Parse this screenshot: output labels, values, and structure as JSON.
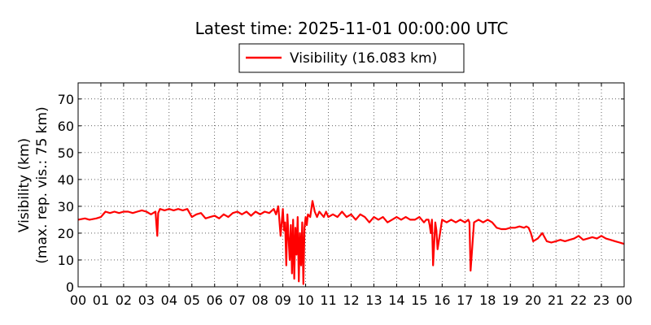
{
  "chart_data": {
    "type": "line",
    "title": "Latest time: 2025-11-01 00:00:00 UTC",
    "ylabel_line1": "Visibility (km)",
    "ylabel_line2": "(max. rep. vis.: 75 km)",
    "xlabel": "",
    "xlim": [
      0,
      24
    ],
    "ylim": [
      0,
      76
    ],
    "grid": true,
    "legend_position": "top-center",
    "x_ticks": [
      "00",
      "01",
      "02",
      "03",
      "04",
      "05",
      "06",
      "07",
      "08",
      "09",
      "10",
      "11",
      "12",
      "13",
      "14",
      "15",
      "16",
      "17",
      "18",
      "19",
      "20",
      "21",
      "22",
      "23",
      "00"
    ],
    "y_ticks": [
      0,
      10,
      20,
      30,
      40,
      50,
      60,
      70
    ],
    "series": [
      {
        "name": "Visibility (16.083 km)",
        "color": "#ff0000",
        "x": [
          0.0,
          0.3,
          0.5,
          0.8,
          1.0,
          1.2,
          1.4,
          1.6,
          1.8,
          2.0,
          2.2,
          2.4,
          2.6,
          2.8,
          3.0,
          3.2,
          3.4,
          3.48,
          3.52,
          3.6,
          3.8,
          4.0,
          4.2,
          4.4,
          4.6,
          4.8,
          5.0,
          5.2,
          5.4,
          5.6,
          5.8,
          6.0,
          6.2,
          6.4,
          6.6,
          6.8,
          7.0,
          7.2,
          7.4,
          7.6,
          7.8,
          8.0,
          8.2,
          8.4,
          8.6,
          8.7,
          8.8,
          8.9,
          9.0,
          9.05,
          9.1,
          9.15,
          9.2,
          9.3,
          9.35,
          9.4,
          9.45,
          9.5,
          9.55,
          9.6,
          9.65,
          9.7,
          9.75,
          9.8,
          9.85,
          9.9,
          9.95,
          10.0,
          10.05,
          10.1,
          10.2,
          10.3,
          10.4,
          10.5,
          10.6,
          10.7,
          10.8,
          10.9,
          11.0,
          11.2,
          11.4,
          11.6,
          11.8,
          12.0,
          12.2,
          12.4,
          12.6,
          12.8,
          13.0,
          13.2,
          13.4,
          13.6,
          13.8,
          14.0,
          14.2,
          14.4,
          14.6,
          14.8,
          15.0,
          15.2,
          15.3,
          15.4,
          15.45,
          15.5,
          15.55,
          15.6,
          15.7,
          15.75,
          15.8,
          16.0,
          16.2,
          16.4,
          16.6,
          16.8,
          17.0,
          17.15,
          17.2,
          17.25,
          17.4,
          17.6,
          17.8,
          18.0,
          18.2,
          18.4,
          18.6,
          18.8,
          19.0,
          19.2,
          19.4,
          19.6,
          19.7,
          19.8,
          19.9,
          20.0,
          20.2,
          20.4,
          20.6,
          20.8,
          21.0,
          21.2,
          21.4,
          21.6,
          21.8,
          22.0,
          22.2,
          22.4,
          22.6,
          22.8,
          23.0,
          23.2,
          23.4,
          23.6,
          23.8,
          24.0
        ],
        "y": [
          25,
          25.5,
          25,
          25.5,
          26,
          28,
          27.5,
          28,
          27.5,
          28,
          28,
          27.5,
          28,
          28.5,
          28,
          27,
          28,
          19,
          27.5,
          29,
          28.5,
          29,
          28.5,
          29,
          28.5,
          29,
          26,
          27,
          27.5,
          25.5,
          26,
          26.5,
          25.5,
          27,
          26,
          27.5,
          28,
          27,
          28,
          26.5,
          28,
          27,
          28,
          27.5,
          29,
          27,
          30,
          19,
          29,
          21,
          24,
          8,
          27,
          10,
          23,
          5,
          25,
          3,
          22,
          12,
          26,
          2,
          20,
          8,
          24,
          1,
          22,
          26,
          23,
          27,
          26,
          32,
          28,
          26,
          28,
          27,
          26,
          28,
          26,
          27,
          26,
          28,
          26,
          27,
          25,
          27,
          26,
          24,
          26,
          25,
          26,
          24,
          25,
          26,
          25,
          26,
          25,
          25,
          26,
          24,
          25,
          25,
          23,
          20,
          25,
          8,
          24,
          21,
          14,
          25,
          24,
          25,
          24,
          25,
          24,
          25,
          24,
          6,
          24,
          25,
          24,
          25,
          24,
          22,
          21.5,
          21.5,
          22,
          22,
          22.5,
          22,
          22.5,
          22,
          20,
          17,
          18,
          20,
          17,
          16.5,
          17,
          17.5,
          17,
          17.5,
          18,
          19,
          17.5,
          18,
          18.5,
          18,
          19,
          18,
          17.5,
          17,
          16.5,
          16
        ]
      }
    ]
  }
}
